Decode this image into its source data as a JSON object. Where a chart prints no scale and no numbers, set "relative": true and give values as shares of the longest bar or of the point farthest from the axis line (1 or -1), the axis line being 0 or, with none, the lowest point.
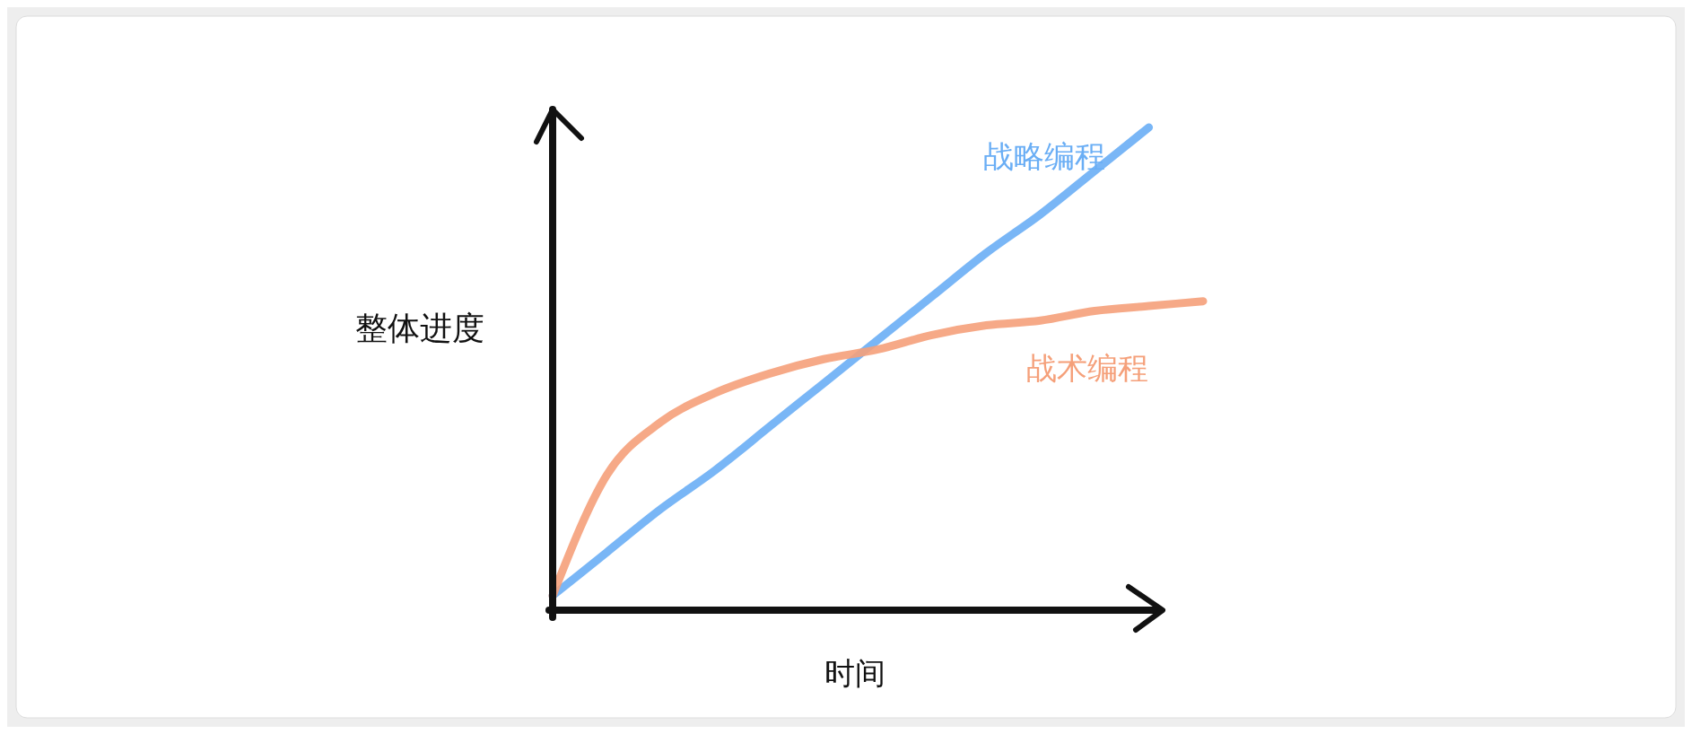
{
  "chart_data": {
    "type": "line",
    "relative": true,
    "xlabel": "时间",
    "ylabel": "整体进度",
    "categories": [
      null,
      null,
      null,
      null,
      null,
      null,
      null,
      null,
      null,
      null,
      null,
      null,
      null
    ],
    "series": [
      {
        "name": "战略编程",
        "color": "#6aaef5",
        "values": [
          0.03,
          0.12,
          0.21,
          0.29,
          0.38,
          0.47,
          0.56,
          0.65,
          0.74,
          0.82,
          0.91,
          1,
          null
        ]
      },
      {
        "name": "战术编程",
        "color": "#f5a07a",
        "values": [
          0.03,
          0.28,
          0.39,
          0.45,
          0.49,
          0.52,
          0.54,
          0.57,
          0.59,
          0.6,
          0.62,
          0.63,
          0.64
        ]
      }
    ],
    "legend": false,
    "marker": "none",
    "line_style": "solid"
  }
}
